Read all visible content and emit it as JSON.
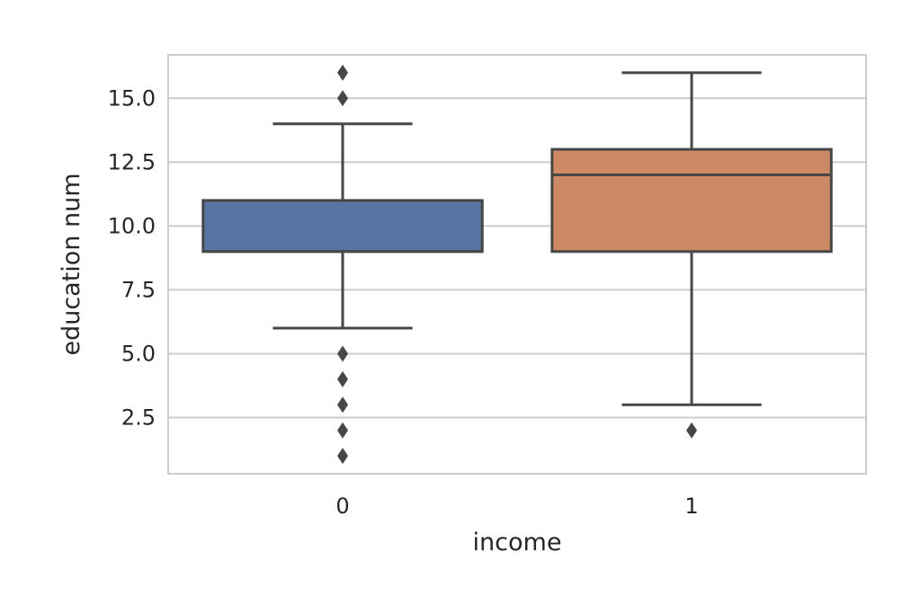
{
  "chart_data": {
    "type": "box",
    "xlabel": "income",
    "ylabel": "education num",
    "ylim": [
      0.3,
      16.7
    ],
    "yticks": [
      "2.5",
      "5.0",
      "7.5",
      "10.0",
      "12.5",
      "15.0"
    ],
    "grid": "horizontal",
    "categories": [
      "0",
      "1"
    ],
    "boxes": [
      {
        "category": "0",
        "q1": 9,
        "median": 9,
        "q3": 11,
        "whisker_low": 6,
        "whisker_high": 14,
        "outliers": [
          1,
          2,
          3,
          4,
          5,
          15,
          16
        ],
        "color": "#5875a4"
      },
      {
        "category": "1",
        "q1": 9,
        "median": 12,
        "q3": 13,
        "whisker_low": 3,
        "whisker_high": 16,
        "outliers": [
          2
        ],
        "color": "#cc8963"
      }
    ]
  }
}
